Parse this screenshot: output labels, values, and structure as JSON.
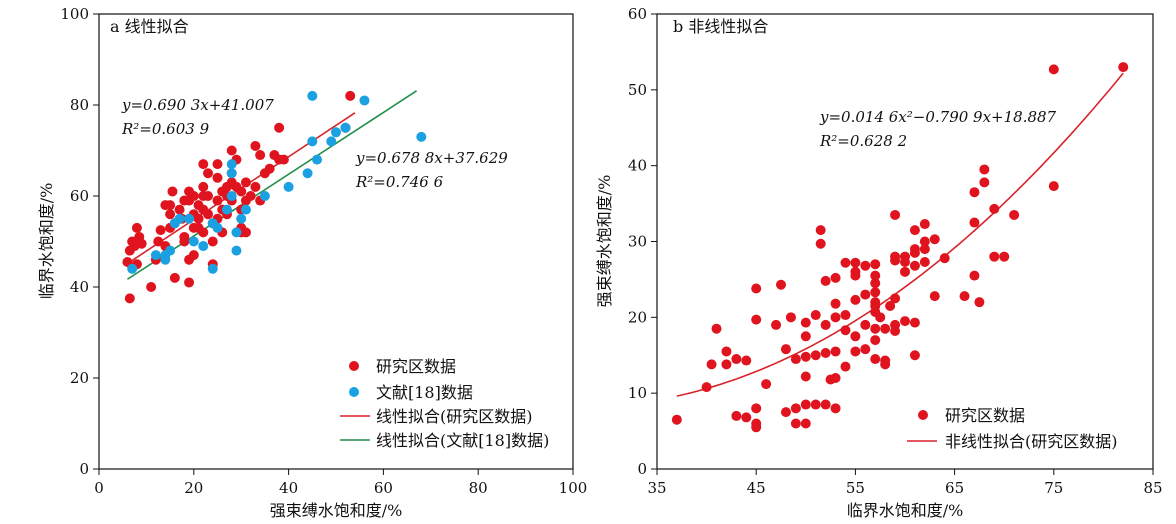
{
  "colors": {
    "red": "#e0141e",
    "blue": "#1ba1e2",
    "redLine": "#d8232a",
    "greenLine": "#1f8f4a",
    "axis": "#111111"
  },
  "chart_data": [
    {
      "type": "scatter",
      "title": "a 线性拟合",
      "xlabel": "强束缚水饱和度/%",
      "ylabel": "临界水饱和度/%",
      "xlim": [
        0,
        100
      ],
      "ylim": [
        0,
        100
      ],
      "xticks": [
        "0",
        "20",
        "40",
        "60",
        "80",
        "100"
      ],
      "yticks": [
        "0",
        "20",
        "40",
        "60",
        "80",
        "100"
      ],
      "legend_position": "bottom-right",
      "legend": [
        "研究区数据",
        "文献[18]数据",
        "线性拟合(研究区数据)",
        "线性拟合(文献[18]数据)"
      ],
      "equations": [
        {
          "line1": "y=0.690 3x+41.007",
          "line2": "R²=0.603 9",
          "position": "upper-left"
        },
        {
          "line1": "y=0.678 8x+37.629",
          "line2": "R²=0.746 6",
          "position": "middle-right"
        }
      ],
      "series": [
        {
          "name": "研究区数据",
          "kind": "scatter",
          "color": "#e0141e",
          "points": [
            [
              6,
              45.5
            ],
            [
              6.5,
              48
            ],
            [
              7,
              50
            ],
            [
              7.5,
              49
            ],
            [
              6.5,
              37.5
            ],
            [
              8,
              53
            ],
            [
              8.5,
              51
            ],
            [
              9,
              49.5
            ],
            [
              8,
              45
            ],
            [
              11,
              40
            ],
            [
              12,
              46
            ],
            [
              12.5,
              50
            ],
            [
              13,
              52.5
            ],
            [
              14,
              58
            ],
            [
              14,
              49
            ],
            [
              15,
              53
            ],
            [
              15,
              56
            ],
            [
              15.5,
              61
            ],
            [
              16,
              54
            ],
            [
              16,
              42
            ],
            [
              17,
              57
            ],
            [
              17.5,
              55
            ],
            [
              18,
              59
            ],
            [
              18,
              51
            ],
            [
              18,
              50
            ],
            [
              19,
              59
            ],
            [
              19,
              61
            ],
            [
              20,
              56
            ],
            [
              20,
              53
            ],
            [
              20,
              47
            ],
            [
              19,
              46
            ],
            [
              19,
              41
            ],
            [
              21,
              58
            ],
            [
              21,
              55
            ],
            [
              21,
              53
            ],
            [
              22,
              67
            ],
            [
              22,
              60
            ],
            [
              22,
              57
            ],
            [
              22,
              52
            ],
            [
              23,
              65
            ],
            [
              23,
              60
            ],
            [
              23,
              56
            ],
            [
              24,
              54
            ],
            [
              24,
              50
            ],
            [
              24,
              45
            ],
            [
              25,
              64
            ],
            [
              25,
              67
            ],
            [
              25,
              59
            ],
            [
              25,
              55
            ],
            [
              26,
              61
            ],
            [
              26,
              57
            ],
            [
              26,
              52
            ],
            [
              27,
              56
            ],
            [
              27,
              60
            ],
            [
              28,
              65
            ],
            [
              28,
              63
            ],
            [
              28,
              59
            ],
            [
              28,
              70
            ],
            [
              29,
              68
            ],
            [
              29,
              62
            ],
            [
              30,
              57
            ],
            [
              30,
              61
            ],
            [
              30,
              53
            ],
            [
              30,
              52
            ],
            [
              31,
              63
            ],
            [
              31,
              59
            ],
            [
              31,
              52
            ],
            [
              32,
              60
            ],
            [
              33,
              71
            ],
            [
              33,
              62
            ],
            [
              34,
              59
            ],
            [
              34,
              69
            ],
            [
              35,
              65
            ],
            [
              36,
              66
            ],
            [
              37,
              69
            ],
            [
              38,
              68
            ],
            [
              38,
              75
            ],
            [
              39,
              68
            ],
            [
              52,
              75
            ],
            [
              53,
              82
            ],
            [
              22,
              62
            ],
            [
              27,
              62
            ],
            [
              20,
              60
            ],
            [
              15,
              58
            ]
          ]
        },
        {
          "name": "文献[18]数据",
          "kind": "scatter",
          "color": "#1ba1e2",
          "points": [
            [
              7,
              44
            ],
            [
              12,
              47
            ],
            [
              14,
              46
            ],
            [
              14,
              47
            ],
            [
              15,
              48
            ],
            [
              16,
              54
            ],
            [
              17,
              55
            ],
            [
              19,
              55
            ],
            [
              20,
              50
            ],
            [
              22,
              49
            ],
            [
              24,
              44
            ],
            [
              24,
              54
            ],
            [
              25,
              53
            ],
            [
              27,
              57
            ],
            [
              28,
              67
            ],
            [
              28,
              60
            ],
            [
              28,
              65
            ],
            [
              29,
              52
            ],
            [
              29,
              48
            ],
            [
              30,
              55
            ],
            [
              31,
              57
            ],
            [
              35,
              60
            ],
            [
              40,
              62
            ],
            [
              44,
              65
            ],
            [
              46,
              68
            ],
            [
              45,
              72
            ],
            [
              49,
              72
            ],
            [
              50,
              74
            ],
            [
              52,
              75
            ],
            [
              56,
              81
            ],
            [
              45,
              82
            ],
            [
              68,
              73
            ]
          ]
        },
        {
          "name": "线性拟合(研究区数据)",
          "kind": "line",
          "color": "#d8232a",
          "slope": 0.6903,
          "intercept": 41.007,
          "x_range": [
            6,
            54
          ]
        },
        {
          "name": "线性拟合(文献[18]数据)",
          "kind": "line",
          "color": "#1f8f4a",
          "slope": 0.6788,
          "intercept": 37.629,
          "x_range": [
            6,
            67
          ]
        }
      ]
    },
    {
      "type": "scatter",
      "title": "b 非线性拟合",
      "xlabel": "临界水饱和度/%",
      "ylabel": "强束缚水饱和度/%",
      "xlim": [
        35,
        85
      ],
      "ylim": [
        0,
        60
      ],
      "xticks": [
        "35",
        "45",
        "55",
        "65",
        "75",
        "85"
      ],
      "yticks": [
        "0",
        "10",
        "20",
        "30",
        "40",
        "50",
        "60"
      ],
      "legend_position": "bottom-right",
      "legend": [
        "研究区数据",
        "非线性拟合(研究区数据)"
      ],
      "equations": [
        {
          "line1": "y=0.014 6x²−0.790 9x+18.887",
          "line2": "R²=0.628 2",
          "position": "upper-middle"
        }
      ],
      "series": [
        {
          "name": "研究区数据",
          "kind": "scatter",
          "color": "#e0141e",
          "points": [
            [
              37,
              6.5
            ],
            [
              40,
              10.8
            ],
            [
              40.5,
              13.8
            ],
            [
              41,
              18.5
            ],
            [
              42,
              15.5
            ],
            [
              42,
              13.8
            ],
            [
              43,
              14.5
            ],
            [
              43,
              7
            ],
            [
              44,
              14.3
            ],
            [
              44,
              6.8
            ],
            [
              45,
              23.8
            ],
            [
              45,
              19.7
            ],
            [
              45,
              8
            ],
            [
              45,
              6
            ],
            [
              45,
              5.5
            ],
            [
              46,
              11.2
            ],
            [
              47,
              19
            ],
            [
              47.5,
              24.3
            ],
            [
              48,
              15.8
            ],
            [
              48,
              7.5
            ],
            [
              48.5,
              20
            ],
            [
              49,
              8
            ],
            [
              49,
              6
            ],
            [
              49,
              14.5
            ],
            [
              50,
              19.3
            ],
            [
              50,
              17.5
            ],
            [
              50,
              14.8
            ],
            [
              50,
              12.2
            ],
            [
              50,
              8.5
            ],
            [
              50,
              6
            ],
            [
              51,
              20.3
            ],
            [
              51,
              15
            ],
            [
              51,
              8.5
            ],
            [
              51.5,
              31.5
            ],
            [
              51.5,
              29.7
            ],
            [
              52,
              24.8
            ],
            [
              52,
              19
            ],
            [
              52,
              15.3
            ],
            [
              52,
              8.5
            ],
            [
              52.5,
              11.8
            ],
            [
              53,
              25.2
            ],
            [
              53,
              21.8
            ],
            [
              53,
              20
            ],
            [
              53,
              15.5
            ],
            [
              53,
              12
            ],
            [
              53,
              8
            ],
            [
              54,
              27.2
            ],
            [
              54,
              20.3
            ],
            [
              54,
              18.3
            ],
            [
              54,
              13.5
            ],
            [
              55,
              27.2
            ],
            [
              55,
              26
            ],
            [
              55,
              25.5
            ],
            [
              55,
              22.3
            ],
            [
              55,
              17.5
            ],
            [
              55,
              15.5
            ],
            [
              56,
              26.8
            ],
            [
              56,
              23
            ],
            [
              56,
              19
            ],
            [
              56,
              15.8
            ],
            [
              57,
              27
            ],
            [
              57,
              25.5
            ],
            [
              57,
              24.5
            ],
            [
              57,
              23.3
            ],
            [
              57,
              22
            ],
            [
              57,
              21.5
            ],
            [
              57,
              20.7
            ],
            [
              57,
              18.5
            ],
            [
              57,
              17
            ],
            [
              57,
              14.5
            ],
            [
              57.5,
              20
            ],
            [
              58,
              14.3
            ],
            [
              58,
              13.8
            ],
            [
              58,
              18.5
            ],
            [
              58.5,
              21.5
            ],
            [
              59,
              33.5
            ],
            [
              59,
              28
            ],
            [
              59,
              27.5
            ],
            [
              59,
              22.5
            ],
            [
              59,
              19
            ],
            [
              59,
              18.2
            ],
            [
              60,
              28
            ],
            [
              60,
              27.3
            ],
            [
              60,
              26
            ],
            [
              60,
              19.5
            ],
            [
              61,
              31.5
            ],
            [
              61,
              29
            ],
            [
              61,
              28.5
            ],
            [
              61,
              26.8
            ],
            [
              61,
              19.3
            ],
            [
              61,
              15
            ],
            [
              62,
              32.3
            ],
            [
              62,
              30
            ],
            [
              62,
              29
            ],
            [
              62,
              27.3
            ],
            [
              63,
              30.3
            ],
            [
              63,
              22.8
            ],
            [
              64,
              27.8
            ],
            [
              66,
              22.8
            ],
            [
              67,
              36.5
            ],
            [
              67,
              32.5
            ],
            [
              67,
              25.5
            ],
            [
              67.5,
              22
            ],
            [
              68,
              39.5
            ],
            [
              68,
              37.8
            ],
            [
              69,
              34.3
            ],
            [
              69,
              28
            ],
            [
              70,
              28
            ],
            [
              71,
              33.5
            ],
            [
              75,
              52.7
            ],
            [
              75,
              37.3
            ],
            [
              82,
              53
            ]
          ]
        },
        {
          "name": "非线性拟合(研究区数据)",
          "kind": "curve",
          "color": "#d8232a",
          "a": 0.0146,
          "b": -0.7909,
          "c": 18.887,
          "x_range": [
            37,
            82
          ]
        }
      ]
    }
  ]
}
